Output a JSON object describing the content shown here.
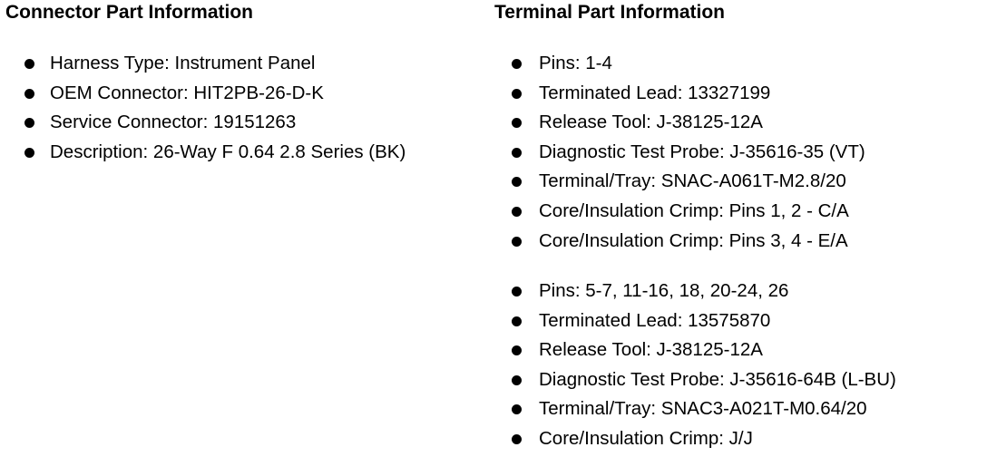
{
  "connector": {
    "heading": "Connector Part Information",
    "items": [
      "Harness Type: Instrument Panel",
      "OEM Connector: HIT2PB-26-D-K",
      "Service Connector: 19151263",
      "Description: 26-Way F 0.64 2.8 Series (BK)"
    ]
  },
  "terminal": {
    "heading": "Terminal Part Information",
    "groups": [
      {
        "items": [
          "Pins: 1-4",
          "Terminated Lead: 13327199",
          "Release Tool: J-38125-12A",
          "Diagnostic Test Probe: J-35616-35 (VT)",
          "Terminal/Tray: SNAC-A061T-M2.8/20",
          "Core/Insulation Crimp: Pins 1, 2 - C/A",
          "Core/Insulation Crimp: Pins 3, 4 - E/A"
        ]
      },
      {
        "items": [
          "Pins: 5-7, 11-16, 18, 20-24, 26",
          "Terminated Lead: 13575870",
          "Release Tool: J-38125-12A",
          "Diagnostic Test Probe: J-35616-64B (L-BU)",
          "Terminal/Tray: SNAC3-A021T-M0.64/20",
          "Core/Insulation Crimp: J/J"
        ]
      }
    ]
  }
}
